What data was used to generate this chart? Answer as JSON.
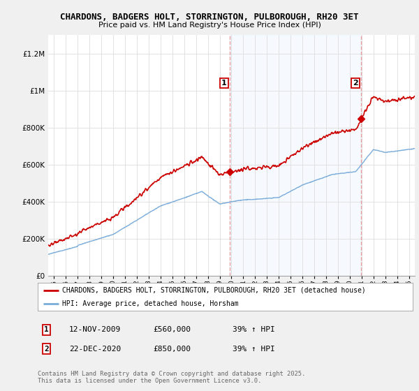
{
  "title1": "CHARDONS, BADGERS HOLT, STORRINGTON, PULBOROUGH, RH20 3ET",
  "title2": "Price paid vs. HM Land Registry's House Price Index (HPI)",
  "ylim": [
    0,
    1300000
  ],
  "yticks": [
    0,
    200000,
    400000,
    600000,
    800000,
    1000000,
    1200000
  ],
  "xlim_start": 1994.5,
  "xlim_end": 2025.5,
  "xtick_years": [
    1995,
    1996,
    1997,
    1998,
    1999,
    2000,
    2001,
    2002,
    2003,
    2004,
    2005,
    2006,
    2007,
    2008,
    2009,
    2010,
    2011,
    2012,
    2013,
    2014,
    2015,
    2016,
    2017,
    2018,
    2019,
    2020,
    2021,
    2022,
    2023,
    2024,
    2025
  ],
  "sale1_x": 2009.87,
  "sale1_y": 560000,
  "sale1_label": "1",
  "sale2_x": 2020.98,
  "sale2_y": 850000,
  "sale2_label": "2",
  "legend_line1": "CHARDONS, BADGERS HOLT, STORRINGTON, PULBOROUGH, RH20 3ET (detached house)",
  "legend_line2": "HPI: Average price, detached house, Horsham",
  "table_row1": [
    "1",
    "12-NOV-2009",
    "£560,000",
    "39% ↑ HPI"
  ],
  "table_row2": [
    "2",
    "22-DEC-2020",
    "£850,000",
    "39% ↑ HPI"
  ],
  "footer": "Contains HM Land Registry data © Crown copyright and database right 2025.\nThis data is licensed under the Open Government Licence v3.0.",
  "red_color": "#cc0000",
  "blue_color": "#7aacda",
  "vline_color": "#e8a0a0",
  "shade_color": "#ddeeff",
  "bg_color": "#f0f0f0",
  "plot_bg": "#ffffff",
  "grid_color": "#dddddd"
}
